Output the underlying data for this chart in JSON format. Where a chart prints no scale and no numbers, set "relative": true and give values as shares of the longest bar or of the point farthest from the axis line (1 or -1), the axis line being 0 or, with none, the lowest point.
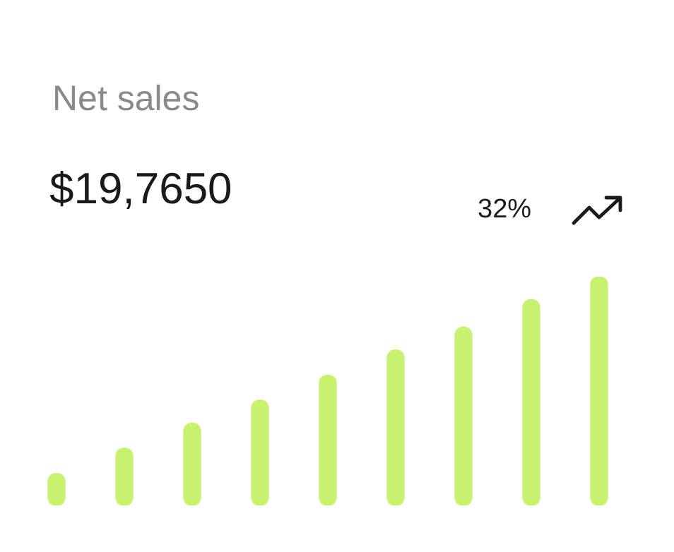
{
  "chart_data": {
    "type": "bar",
    "title": "Net sales",
    "subtitle": "$19,7650",
    "annotations": [
      "32%"
    ],
    "categories": [
      null,
      null,
      null,
      null,
      null,
      null,
      null,
      null,
      null
    ],
    "values": [
      0.14,
      0.25,
      0.36,
      0.46,
      0.57,
      0.68,
      0.78,
      0.9,
      1
    ],
    "color": "#c6f26e",
    "relative": true,
    "legend": false
  }
}
